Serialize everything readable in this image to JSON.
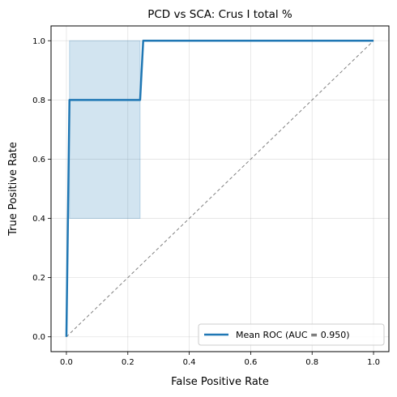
{
  "chart_data": {
    "type": "line",
    "title": "PCD vs SCA: Crus I total %",
    "xlabel": "False Positive Rate",
    "ylabel": "True Positive Rate",
    "xlim": [
      -0.05,
      1.05
    ],
    "ylim": [
      -0.05,
      1.05
    ],
    "xticks": [
      "0.0",
      "0.2",
      "0.4",
      "0.6",
      "0.8",
      "1.0"
    ],
    "yticks": [
      "0.0",
      "0.2",
      "0.4",
      "0.6",
      "0.8",
      "1.0"
    ],
    "grid": true,
    "legend_position": "lower right",
    "series": [
      {
        "name": "Mean ROC (AUC = 0.950)",
        "color": "#1f77b4",
        "x": [
          0.0,
          0.01,
          0.24,
          0.25,
          1.0
        ],
        "y": [
          0.0,
          0.8,
          0.8,
          1.0,
          1.0
        ]
      }
    ],
    "band": {
      "color": "#1f77b4",
      "x": [
        0.01,
        0.24
      ],
      "lower": [
        0.4,
        0.4
      ],
      "upper": [
        1.0,
        1.0
      ]
    },
    "reference_line": {
      "color": "#808080",
      "style": "dashed",
      "x": [
        0.0,
        1.0
      ],
      "y": [
        0.0,
        1.0
      ]
    }
  }
}
